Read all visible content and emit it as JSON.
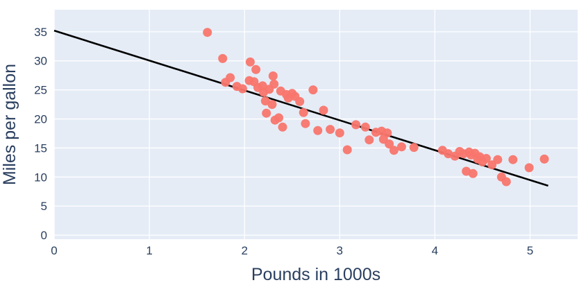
{
  "chart_data": {
    "type": "scatter",
    "title": "",
    "xlabel": "Pounds in 1000s",
    "ylabel": "Miles per gallon",
    "x_ticks": [
      0,
      1,
      2,
      3,
      4,
      5
    ],
    "y_ticks": [
      0,
      5,
      10,
      15,
      20,
      25,
      30,
      35
    ],
    "x_range": [
      0,
      5.5
    ],
    "y_range": [
      -0.7,
      38.8
    ],
    "grid": true,
    "legend": "none",
    "background_color": "#e5ecf6",
    "grid_color": "#ffffff",
    "text_color": "#2a3f5f",
    "marker_color": "#f8766d",
    "trend_line_color": "#000000",
    "points": [
      [
        1.61,
        34.9
      ],
      [
        1.77,
        30.4
      ],
      [
        1.8,
        26.3
      ],
      [
        1.85,
        27.1
      ],
      [
        1.92,
        25.6
      ],
      [
        2.06,
        29.8
      ],
      [
        2.12,
        28.5
      ],
      [
        1.98,
        25.2
      ],
      [
        2.05,
        26.6
      ],
      [
        2.1,
        26.4
      ],
      [
        2.14,
        25.4
      ],
      [
        2.19,
        25.7
      ],
      [
        2.2,
        24.6
      ],
      [
        2.22,
        23.1
      ],
      [
        2.23,
        21.0
      ],
      [
        2.26,
        25.1
      ],
      [
        2.29,
        22.5
      ],
      [
        2.3,
        27.4
      ],
      [
        2.31,
        26.0
      ],
      [
        2.32,
        19.8
      ],
      [
        2.36,
        20.2
      ],
      [
        2.38,
        24.8
      ],
      [
        2.4,
        18.6
      ],
      [
        2.44,
        24.2
      ],
      [
        2.46,
        23.6
      ],
      [
        2.5,
        24.4
      ],
      [
        2.53,
        23.9
      ],
      [
        2.58,
        23.0
      ],
      [
        2.62,
        21.1
      ],
      [
        2.64,
        19.2
      ],
      [
        2.72,
        25.0
      ],
      [
        2.77,
        18.0
      ],
      [
        2.83,
        21.5
      ],
      [
        2.9,
        18.2
      ],
      [
        3.0,
        17.6
      ],
      [
        3.08,
        14.7
      ],
      [
        3.17,
        19.0
      ],
      [
        3.27,
        18.6
      ],
      [
        3.31,
        16.4
      ],
      [
        3.38,
        17.7
      ],
      [
        3.44,
        17.9
      ],
      [
        3.46,
        16.5
      ],
      [
        3.5,
        17.6
      ],
      [
        3.52,
        15.7
      ],
      [
        3.57,
        14.6
      ],
      [
        3.65,
        15.2
      ],
      [
        3.78,
        15.1
      ],
      [
        4.08,
        14.6
      ],
      [
        4.14,
        14.0
      ],
      [
        4.21,
        13.6
      ],
      [
        4.26,
        14.4
      ],
      [
        4.3,
        14.0
      ],
      [
        4.33,
        11.0
      ],
      [
        4.36,
        14.3
      ],
      [
        4.38,
        13.8
      ],
      [
        4.4,
        10.6
      ],
      [
        4.42,
        14.1
      ],
      [
        4.45,
        13.1
      ],
      [
        4.47,
        13.5
      ],
      [
        4.5,
        12.6
      ],
      [
        4.54,
        13.2
      ],
      [
        4.6,
        12.1
      ],
      [
        4.66,
        13.0
      ],
      [
        4.7,
        10.0
      ],
      [
        4.75,
        9.2
      ],
      [
        4.82,
        13.0
      ],
      [
        4.99,
        11.6
      ],
      [
        5.15,
        13.1
      ]
    ],
    "regression_line": {
      "x": [
        0,
        5.19
      ],
      "y": [
        35.2,
        8.5
      ]
    }
  }
}
